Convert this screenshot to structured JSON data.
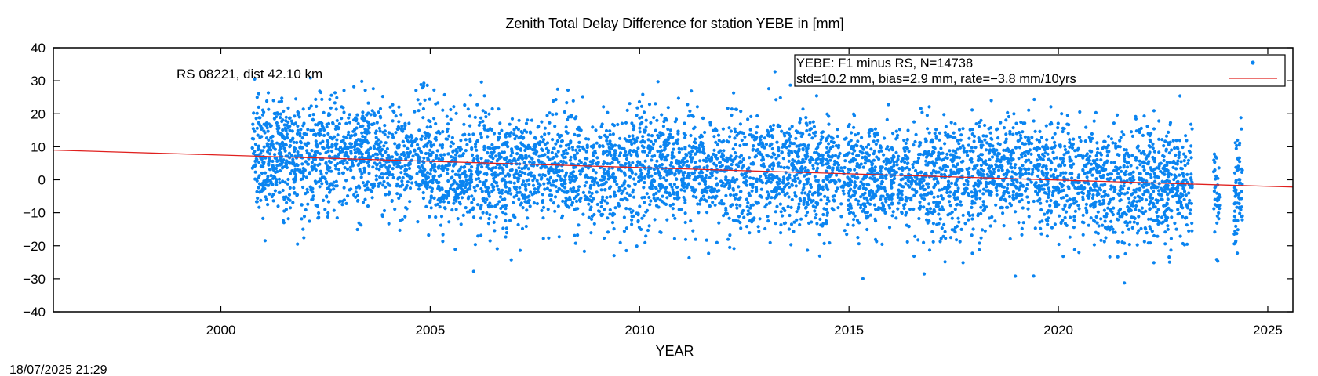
{
  "chart_data": {
    "type": "scatter",
    "title": "Zenith Total Delay Difference for station YEBE in [mm]",
    "xlabel": "YEAR",
    "ylabel": "",
    "xlim": [
      1996.0,
      2025.6
    ],
    "ylim": [
      -40,
      40
    ],
    "xticks": [
      2000,
      2005,
      2010,
      2015,
      2020,
      2025
    ],
    "xtick_labels": [
      "2000",
      "2005",
      "2010",
      "2015",
      "2020",
      "2025"
    ],
    "yticks": [
      -40,
      -30,
      -20,
      -10,
      0,
      10,
      20,
      30,
      40
    ],
    "ytick_labels": [
      "−40",
      "−30",
      "−20",
      "−10",
      "0",
      "10",
      "20",
      "30",
      "40"
    ],
    "annotation": "RS 08221, dist 42.10 km",
    "legend_position": "top-right",
    "series": [
      {
        "name": "YEBE: F1 minus RS, N=14738",
        "kind": "points",
        "color": "#0a84f0",
        "count": 14738,
        "x_range": [
          2000.75,
          2024.4
        ],
        "mean_trend": [
          {
            "x": 2001,
            "y": 8
          },
          {
            "x": 2002,
            "y": 6
          },
          {
            "x": 2003,
            "y": 9
          },
          {
            "x": 2004,
            "y": 6
          },
          {
            "x": 2005,
            "y": 5
          },
          {
            "x": 2006,
            "y": 2
          },
          {
            "x": 2007,
            "y": 3
          },
          {
            "x": 2008,
            "y": 4
          },
          {
            "x": 2009,
            "y": 2
          },
          {
            "x": 2010,
            "y": 4
          },
          {
            "x": 2011,
            "y": 3
          },
          {
            "x": 2012,
            "y": 1
          },
          {
            "x": 2013,
            "y": 3
          },
          {
            "x": 2014,
            "y": 2
          },
          {
            "x": 2015,
            "y": 2
          },
          {
            "x": 2016,
            "y": 0
          },
          {
            "x": 2017,
            "y": 0
          },
          {
            "x": 2018,
            "y": 0
          },
          {
            "x": 2019,
            "y": 3
          },
          {
            "x": 2020,
            "y": 0
          },
          {
            "x": 2021,
            "y": -1
          },
          {
            "x": 2022,
            "y": -1
          },
          {
            "x": 2023,
            "y": -2
          },
          {
            "x": 2024,
            "y": -3
          }
        ],
        "std": 10.2
      },
      {
        "name": "std=10.2 mm, bias=2.9 mm, rate=−3.8 mm/10yrs",
        "kind": "line",
        "color": "#e0201e",
        "x": [
          1996.0,
          2025.6
        ],
        "y": [
          9.0,
          -2.2
        ]
      }
    ],
    "timestamp": "18/07/2025 21:29"
  }
}
